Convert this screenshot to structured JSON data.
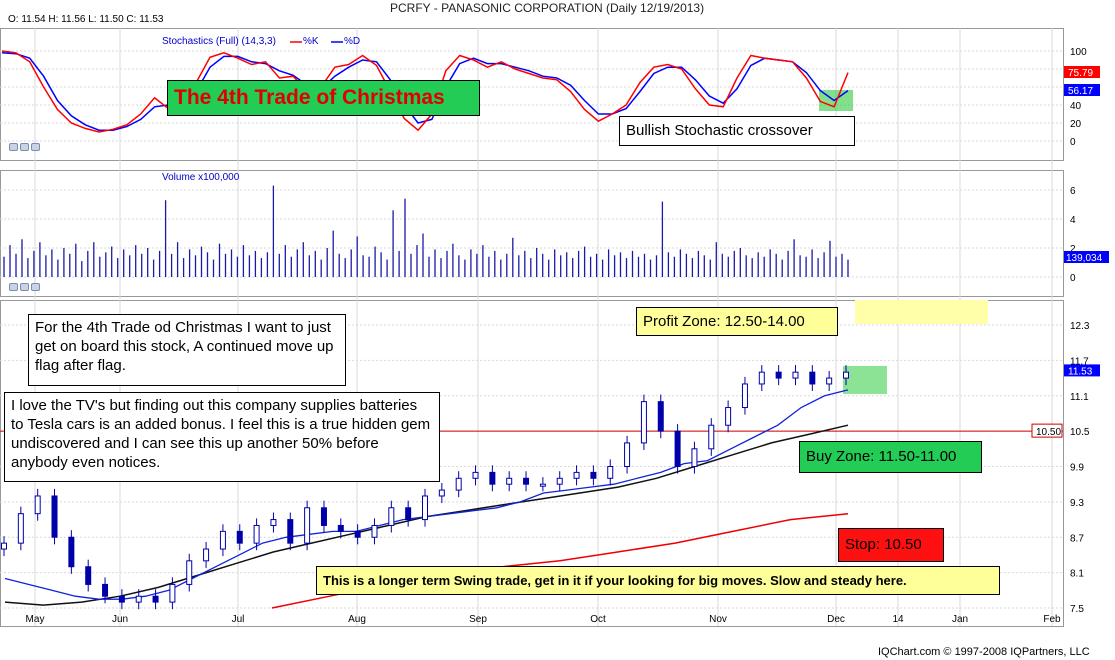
{
  "header": {
    "title": "PCRFY - PANASONIC CORPORATION (Daily 12/19/2013)",
    "ohlc": "O: 11.54  H: 11.56  L: 11.50  C: 11.53"
  },
  "footer": "IQChart.com © 1997-2008 IQPartners, LLC",
  "colors": {
    "blue": "#0000ff",
    "red": "#ff0000",
    "grid": "#d9d9d9",
    "green": "#2ecc40",
    "yellow": "#ffffaa"
  },
  "annotations": {
    "trade_title": "The 4th Trade of Christmas",
    "stoch_note": "Bullish Stochastic crossover",
    "note1": "For the 4th Trade od Christmas I want to just get on board this stock, A continued move up flag after flag.",
    "note2": "I love the TV's but finding out this company supplies batteries to Tesla cars is an added bonus. I feel this is a true hidden gem undiscovered and I can see this up another 50% before anybody even notices.",
    "profit_zone": "Profit Zone: 12.50-14.00",
    "buy_zone": "Buy Zone: 11.50-11.00",
    "stop": "Stop: 10.50",
    "swing": "This is a longer term Swing trade, get in it if your looking for  big moves. Slow and steady here."
  },
  "chart_data": [
    {
      "type": "line",
      "title": "Stochastics (Full) (14,3,3)",
      "series": [
        {
          "name": "%K",
          "color": "#ff0000",
          "last": "75.79",
          "values": [
            100,
            98,
            88,
            60,
            35,
            20,
            14,
            10,
            13,
            18,
            30,
            48,
            36,
            35,
            65,
            93,
            98,
            92,
            85,
            88,
            70,
            72,
            55,
            60,
            82,
            85,
            95,
            84,
            55,
            25,
            12,
            30,
            78,
            95,
            90,
            82,
            88,
            80,
            75,
            70,
            68,
            55,
            35,
            22,
            30,
            40,
            65,
            82,
            85,
            80,
            58,
            40,
            38,
            70,
            95,
            92,
            90,
            88,
            70,
            44,
            38,
            76
          ]
        },
        {
          "name": "%D",
          "color": "#0000ff",
          "last": "56.17",
          "values": [
            98,
            97,
            92,
            72,
            45,
            28,
            18,
            12,
            12,
            16,
            24,
            38,
            40,
            38,
            55,
            82,
            94,
            94,
            88,
            86,
            78,
            73,
            62,
            58,
            72,
            82,
            90,
            88,
            68,
            40,
            20,
            24,
            60,
            86,
            92,
            86,
            86,
            82,
            78,
            72,
            70,
            62,
            45,
            30,
            30,
            36,
            55,
            75,
            82,
            82,
            68,
            50,
            42,
            58,
            84,
            92,
            90,
            88,
            76,
            56,
            45,
            56
          ]
        }
      ],
      "ylim": [
        0,
        100
      ],
      "yticks": [
        "100",
        "80",
        "60",
        "40",
        "20",
        "0"
      ]
    },
    {
      "type": "bar",
      "title": "Volume x100,000",
      "last": "139,034",
      "ylim": [
        0,
        7
      ],
      "yticks": [
        "6",
        "4",
        "2",
        "0"
      ],
      "values": [
        1.4,
        2.2,
        1.6,
        2.6,
        1.3,
        1.8,
        2.4,
        1.5,
        1.9,
        1.2,
        2.0,
        1.6,
        2.3,
        1.1,
        1.8,
        2.4,
        1.4,
        1.7,
        2.1,
        1.3,
        1.9,
        1.5,
        2.2,
        1.6,
        2.0,
        1.2,
        1.8,
        5.3,
        1.6,
        2.4,
        1.3,
        1.9,
        1.5,
        2.1,
        1.7,
        1.2,
        2.3,
        1.6,
        1.9,
        1.4,
        2.2,
        1.5,
        1.8,
        1.3,
        1.7,
        6.3,
        1.6,
        2.2,
        1.4,
        1.9,
        2.4,
        1.5,
        1.8,
        1.2,
        2.0,
        3.2,
        1.6,
        1.3,
        1.9,
        2.8,
        1.5,
        1.4,
        2.1,
        1.7,
        1.2,
        4.6,
        1.8,
        5.4,
        1.6,
        2.2,
        3.0,
        1.4,
        1.9,
        1.3,
        1.8,
        2.3,
        1.5,
        1.2,
        1.9,
        1.6,
        2.2,
        1.4,
        1.8,
        1.2,
        1.6,
        2.7,
        1.5,
        1.8,
        1.3,
        2.0,
        1.6,
        1.2,
        1.9,
        1.5,
        1.7,
        1.3,
        1.8,
        2.1,
        1.4,
        1.6,
        1.2,
        1.9,
        1.5,
        1.7,
        1.3,
        1.8,
        1.4,
        1.6,
        1.2,
        1.5,
        5.2,
        1.7,
        1.4,
        1.9,
        1.6,
        1.3,
        1.8,
        1.5,
        1.2,
        2.4,
        1.6,
        1.4,
        1.8,
        2.0,
        1.5,
        1.3,
        1.7,
        1.4,
        1.9,
        1.6,
        1.2,
        1.8,
        2.6,
        1.5,
        1.4,
        1.9,
        1.3,
        1.7,
        2.5,
        1.4,
        1.6,
        1.2
      ]
    },
    {
      "type": "candlestick",
      "ylim": [
        7.5,
        12.7
      ],
      "yticks": [
        "12.3",
        "11.7",
        "11.1",
        "10.5",
        "9.9",
        "9.3",
        "8.7",
        "8.1",
        "7.5"
      ],
      "xticks": [
        "May",
        "Jun",
        "Jul",
        "Aug",
        "Sep",
        "Oct",
        "Nov",
        "Dec",
        "14",
        "Jan",
        "Feb"
      ],
      "last_price": "11.53",
      "stop_level": "10.50",
      "closes": [
        8.6,
        9.1,
        9.4,
        8.7,
        8.2,
        7.9,
        7.7,
        7.6,
        7.7,
        7.6,
        7.9,
        8.3,
        8.5,
        8.8,
        8.6,
        8.9,
        9.0,
        8.6,
        9.2,
        8.9,
        8.8,
        8.7,
        8.9,
        9.2,
        9.0,
        9.4,
        9.5,
        9.7,
        9.8,
        9.6,
        9.7,
        9.6,
        9.6,
        9.7,
        9.8,
        9.7,
        9.9,
        10.3,
        11.0,
        10.5,
        9.9,
        10.2,
        10.6,
        10.9,
        11.3,
        11.5,
        11.4,
        11.5,
        11.3,
        11.4,
        11.5
      ],
      "ma_fast": [
        8.0,
        7.9,
        7.8,
        7.7,
        7.65,
        7.65,
        7.7,
        7.8,
        8.0,
        8.2,
        8.4,
        8.6,
        8.7,
        8.75,
        8.8,
        8.8,
        8.9,
        9.0,
        9.05,
        9.1,
        9.15,
        9.2,
        9.3,
        9.45,
        9.5,
        9.55,
        9.6,
        9.7,
        9.8,
        9.95,
        10.0,
        10.2,
        10.4,
        10.6,
        10.9,
        11.1,
        11.2
      ],
      "ma_slow": [
        7.6,
        7.55,
        7.6,
        7.7,
        7.85,
        8.05,
        8.25,
        8.45,
        8.6,
        8.75,
        8.9,
        9.05,
        9.15,
        9.25,
        9.35,
        9.45,
        9.55,
        9.7,
        9.9,
        10.1,
        10.3,
        10.45,
        10.6
      ],
      "ma_red": [
        7.5,
        7.7,
        7.9,
        8.05,
        8.2,
        8.3,
        8.45,
        8.6,
        8.8,
        9.0,
        9.1
      ]
    }
  ]
}
